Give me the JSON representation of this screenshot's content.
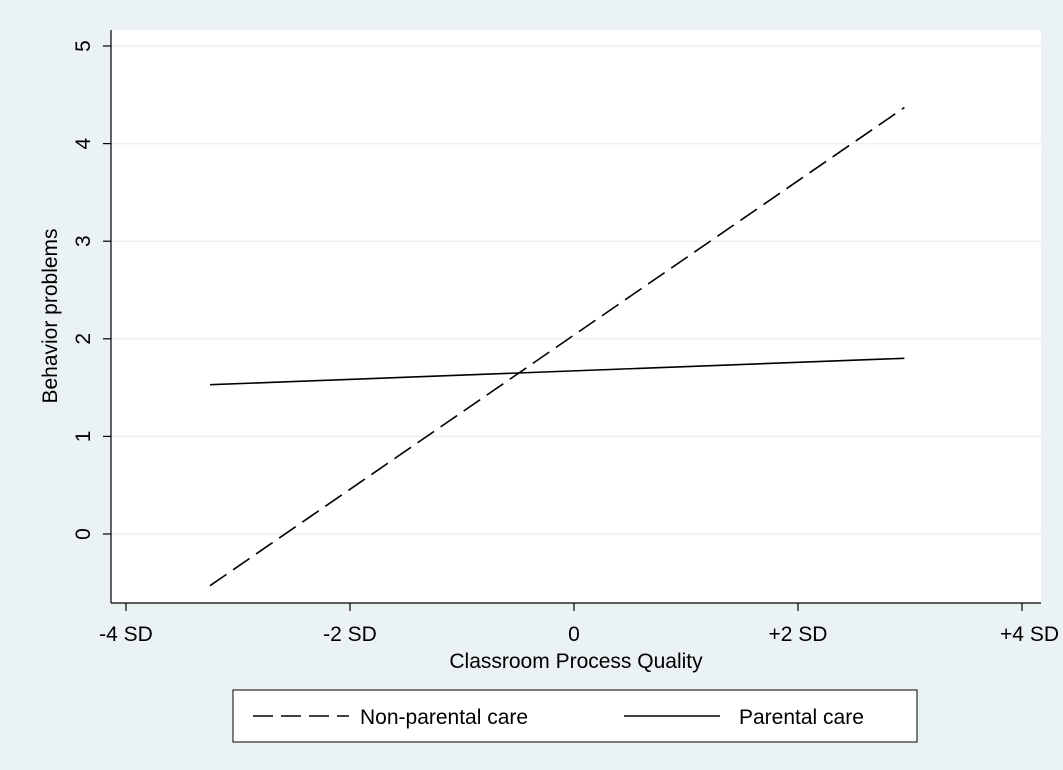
{
  "chart_data": {
    "type": "line",
    "xlabel": "Classroom Process Quality",
    "ylabel": "Behavior problems",
    "xlim": [
      -4,
      4
    ],
    "ylim": [
      -0.7,
      5.1
    ],
    "x_ticks": [
      {
        "value": -4,
        "label": "-4 SD"
      },
      {
        "value": -2,
        "label": "-2 SD"
      },
      {
        "value": 0,
        "label": "0"
      },
      {
        "value": 2,
        "label": "+2 SD"
      },
      {
        "value": 4,
        "label": "+4 SD"
      }
    ],
    "y_ticks": [
      {
        "value": 0,
        "label": "0"
      },
      {
        "value": 1,
        "label": "1"
      },
      {
        "value": 2,
        "label": "2"
      },
      {
        "value": 3,
        "label": "3"
      },
      {
        "value": 4,
        "label": "4"
      },
      {
        "value": 5,
        "label": "5"
      }
    ],
    "grid": true,
    "legend_position": "bottom",
    "series": [
      {
        "name": "Non-parental care",
        "style": "dashed",
        "x": [
          -3.25,
          2.95
        ],
        "y": [
          -0.53,
          4.37
        ]
      },
      {
        "name": "Parental care",
        "style": "solid",
        "x": [
          -3.25,
          2.95
        ],
        "y": [
          1.53,
          1.8
        ]
      }
    ],
    "colors": {
      "background": "#eaf2f3",
      "plot_bg": "#ffffff",
      "grid": "#eaf2f3",
      "line": "#000000"
    }
  }
}
